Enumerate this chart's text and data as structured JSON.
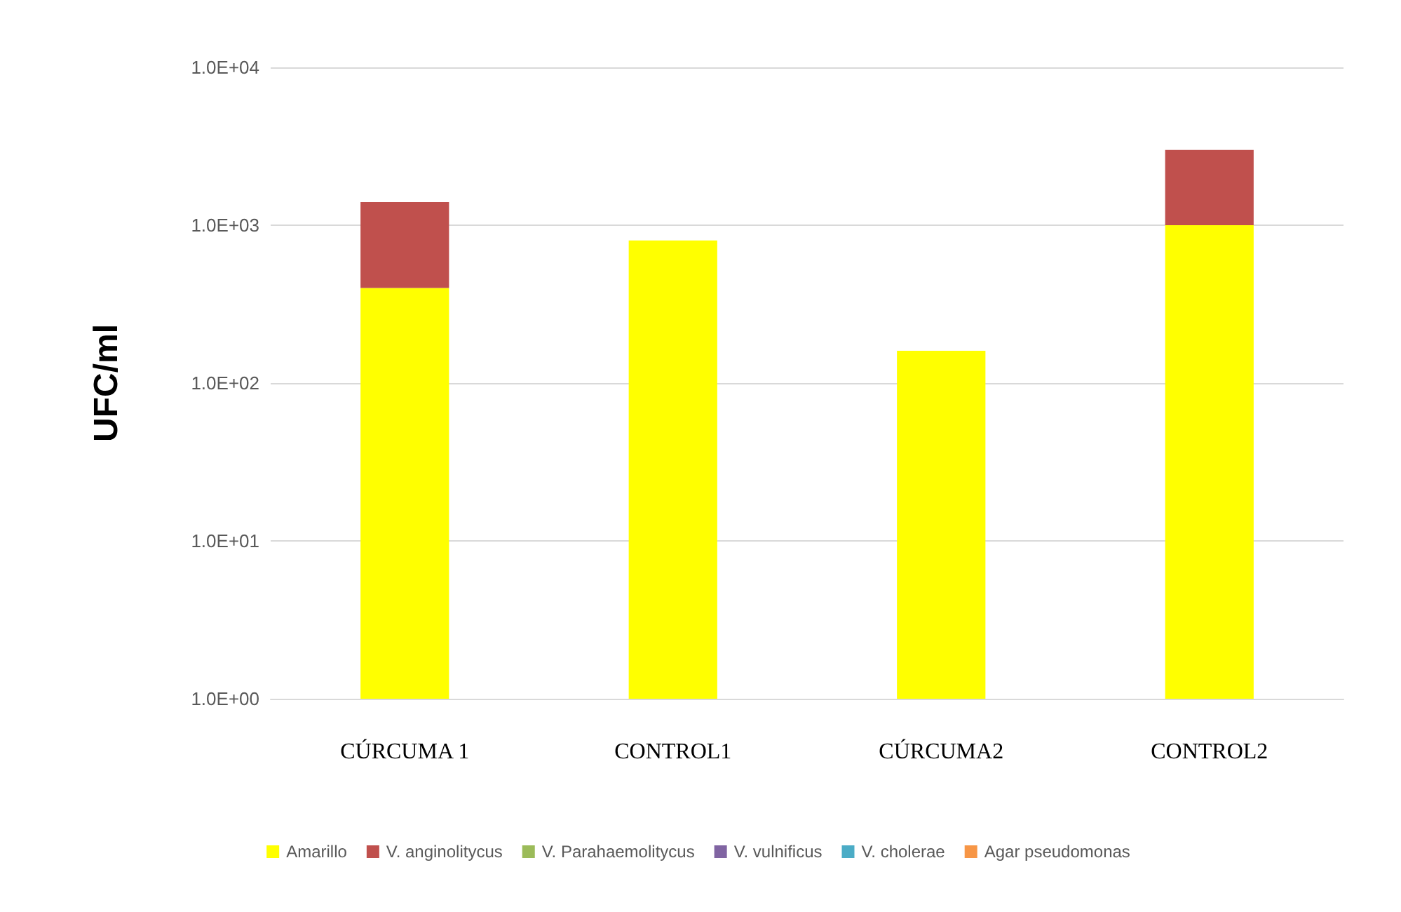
{
  "chart_data": {
    "type": "bar",
    "ylabel": "UFC/ml",
    "stacked": true,
    "log": "y",
    "grid": "y",
    "legend": "bottom",
    "categories": [
      "CÚRCUMA 1",
      "CONTROL1",
      "CÚRCUMA2",
      "CONTROL2"
    ],
    "ylim": [
      1,
      10000
    ],
    "yticks": [
      {
        "value": 1,
        "label": "1.0E+00"
      },
      {
        "value": 10,
        "label": "1.0E+01"
      },
      {
        "value": 100,
        "label": "1.0E+02"
      },
      {
        "value": 1000,
        "label": "1.0E+03"
      },
      {
        "value": 10000,
        "label": "1.0E+04"
      }
    ],
    "series": [
      {
        "name": "Amarillo",
        "color": "#ffff00",
        "values": [
          400,
          800,
          160,
          1000
        ]
      },
      {
        "name": "V. anginolitycus",
        "color": "#c0504d",
        "values": [
          1000,
          null,
          null,
          2000
        ]
      },
      {
        "name": "V. Parahaemolitycus",
        "color": "#9bbb59",
        "values": [
          null,
          null,
          null,
          null
        ]
      },
      {
        "name": "V. vulnificus",
        "color": "#8064a2",
        "values": [
          null,
          null,
          null,
          null
        ]
      },
      {
        "name": "V. cholerae",
        "color": "#4bacc6",
        "values": [
          null,
          null,
          null,
          null
        ]
      },
      {
        "name": "Agar pseudomonas",
        "color": "#f79646",
        "values": [
          null,
          null,
          null,
          null
        ]
      }
    ]
  }
}
